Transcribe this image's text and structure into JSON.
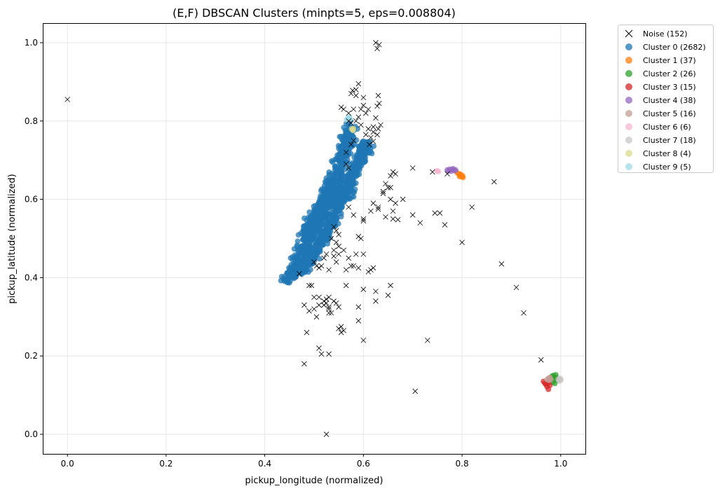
{
  "chart_data": {
    "type": "scatter",
    "title": "(E,F) DBSCAN Clusters (minpts=5, eps=0.008804)",
    "xlabel": "pickup_longitude (normalized)",
    "ylabel": "pickup_latitude (normalized)",
    "xlim": [
      -0.05,
      1.05
    ],
    "ylim": [
      -0.05,
      1.05
    ],
    "xticks": [
      0.0,
      0.2,
      0.4,
      0.6,
      0.8,
      1.0
    ],
    "yticks": [
      0.0,
      0.2,
      0.4,
      0.6,
      0.8,
      1.0
    ],
    "xtick_labels": [
      "0.0",
      "0.2",
      "0.4",
      "0.6",
      "0.8",
      "1.0"
    ],
    "ytick_labels": [
      "0.0",
      "0.2",
      "0.4",
      "0.6",
      "0.8",
      "1.0"
    ],
    "grid": true,
    "legend_position": "outside-top-right",
    "series": [
      {
        "name": "Noise (152)",
        "marker": "x",
        "color": "#000000",
        "points": [
          [
            0.0,
            0.855
          ],
          [
            0.625,
            1.0
          ],
          [
            0.628,
            0.985
          ],
          [
            0.632,
            0.995
          ],
          [
            0.59,
            0.895
          ],
          [
            0.585,
            0.88
          ],
          [
            0.578,
            0.878
          ],
          [
            0.575,
            0.87
          ],
          [
            0.585,
            0.865
          ],
          [
            0.63,
            0.865
          ],
          [
            0.632,
            0.845
          ],
          [
            0.628,
            0.838
          ],
          [
            0.6,
            0.84
          ],
          [
            0.58,
            0.83
          ],
          [
            0.57,
            0.82
          ],
          [
            0.555,
            0.835
          ],
          [
            0.56,
            0.83
          ],
          [
            0.605,
            0.82
          ],
          [
            0.59,
            0.81
          ],
          [
            0.625,
            0.808
          ],
          [
            0.595,
            0.79
          ],
          [
            0.635,
            0.79
          ],
          [
            0.63,
            0.78
          ],
          [
            0.62,
            0.772
          ],
          [
            0.628,
            0.765
          ],
          [
            0.615,
            0.758
          ],
          [
            0.62,
            0.748
          ],
          [
            0.612,
            0.74
          ],
          [
            0.66,
            0.67
          ],
          [
            0.665,
            0.665
          ],
          [
            0.655,
            0.66
          ],
          [
            0.65,
            0.63
          ],
          [
            0.64,
            0.615
          ],
          [
            0.655,
            0.6
          ],
          [
            0.665,
            0.59
          ],
          [
            0.66,
            0.57
          ],
          [
            0.63,
            0.58
          ],
          [
            0.62,
            0.59
          ],
          [
            0.615,
            0.57
          ],
          [
            0.7,
            0.68
          ],
          [
            0.74,
            0.67
          ],
          [
            0.77,
            0.665
          ],
          [
            0.68,
            0.6
          ],
          [
            0.645,
            0.555
          ],
          [
            0.66,
            0.55
          ],
          [
            0.67,
            0.548
          ],
          [
            0.7,
            0.56
          ],
          [
            0.715,
            0.54
          ],
          [
            0.745,
            0.565
          ],
          [
            0.755,
            0.565
          ],
          [
            0.765,
            0.535
          ],
          [
            0.8,
            0.49
          ],
          [
            0.82,
            0.58
          ],
          [
            0.865,
            0.645
          ],
          [
            0.88,
            0.435
          ],
          [
            0.91,
            0.375
          ],
          [
            0.925,
            0.31
          ],
          [
            0.96,
            0.19
          ],
          [
            0.705,
            0.11
          ],
          [
            0.73,
            0.24
          ],
          [
            0.6,
            0.545
          ],
          [
            0.595,
            0.5
          ],
          [
            0.59,
            0.505
          ],
          [
            0.585,
            0.46
          ],
          [
            0.6,
            0.46
          ],
          [
            0.57,
            0.45
          ],
          [
            0.58,
            0.43
          ],
          [
            0.59,
            0.425
          ],
          [
            0.565,
            0.42
          ],
          [
            0.575,
            0.43
          ],
          [
            0.61,
            0.415
          ],
          [
            0.615,
            0.42
          ],
          [
            0.62,
            0.425
          ],
          [
            0.565,
            0.38
          ],
          [
            0.6,
            0.37
          ],
          [
            0.625,
            0.365
          ],
          [
            0.655,
            0.38
          ],
          [
            0.65,
            0.355
          ],
          [
            0.625,
            0.34
          ],
          [
            0.59,
            0.325
          ],
          [
            0.59,
            0.29
          ],
          [
            0.6,
            0.24
          ],
          [
            0.55,
            0.46
          ],
          [
            0.545,
            0.44
          ],
          [
            0.53,
            0.42
          ],
          [
            0.515,
            0.43
          ],
          [
            0.51,
            0.425
          ],
          [
            0.505,
            0.43
          ],
          [
            0.49,
            0.38
          ],
          [
            0.495,
            0.38
          ],
          [
            0.5,
            0.35
          ],
          [
            0.51,
            0.33
          ],
          [
            0.52,
            0.34
          ],
          [
            0.525,
            0.345
          ],
          [
            0.525,
            0.335
          ],
          [
            0.53,
            0.325
          ],
          [
            0.53,
            0.32
          ],
          [
            0.53,
            0.31
          ],
          [
            0.535,
            0.31
          ],
          [
            0.545,
            0.335
          ],
          [
            0.55,
            0.325
          ],
          [
            0.55,
            0.27
          ],
          [
            0.555,
            0.275
          ],
          [
            0.56,
            0.265
          ],
          [
            0.555,
            0.26
          ],
          [
            0.49,
            0.315
          ],
          [
            0.5,
            0.32
          ],
          [
            0.505,
            0.3
          ],
          [
            0.485,
            0.26
          ],
          [
            0.51,
            0.22
          ],
          [
            0.515,
            0.205
          ],
          [
            0.53,
            0.205
          ],
          [
            0.48,
            0.18
          ],
          [
            0.525,
            0.0
          ],
          [
            0.57,
            0.68
          ],
          [
            0.565,
            0.69
          ],
          [
            0.565,
            0.72
          ],
          [
            0.575,
            0.74
          ],
          [
            0.58,
            0.75
          ],
          [
            0.575,
            0.795
          ],
          [
            0.585,
            0.8
          ],
          [
            0.57,
            0.8
          ],
          [
            0.605,
            0.765
          ],
          [
            0.61,
            0.78
          ],
          [
            0.62,
            0.785
          ],
          [
            0.54,
            0.53
          ],
          [
            0.535,
            0.5
          ],
          [
            0.545,
            0.49
          ],
          [
            0.54,
            0.47
          ],
          [
            0.525,
            0.46
          ],
          [
            0.52,
            0.45
          ],
          [
            0.5,
            0.44
          ],
          [
            0.47,
            0.41
          ],
          [
            0.545,
            0.52
          ],
          [
            0.55,
            0.51
          ],
          [
            0.64,
            0.62
          ],
          [
            0.63,
            0.575
          ],
          [
            0.645,
            0.64
          ],
          [
            0.655,
            0.63
          ],
          [
            0.53,
            0.35
          ],
          [
            0.54,
            0.34
          ],
          [
            0.52,
            0.33
          ],
          [
            0.51,
            0.35
          ],
          [
            0.48,
            0.33
          ],
          [
            0.6,
            0.55
          ],
          [
            0.58,
            0.56
          ],
          [
            0.57,
            0.58
          ],
          [
            0.55,
            0.48
          ],
          [
            0.56,
            0.47
          ],
          [
            0.54,
            0.455
          ],
          [
            0.6,
            0.86
          ],
          [
            0.61,
            0.83
          ],
          [
            0.595,
            0.83
          ]
        ]
      },
      {
        "name": "Cluster 0 (2682)",
        "marker": "o",
        "color": "#1f77b4"
      },
      {
        "name": "Cluster 1 (37)",
        "marker": "o",
        "color": "#ff7f0e",
        "points": [
          [
            0.79,
            0.668
          ],
          [
            0.793,
            0.665
          ],
          [
            0.796,
            0.662
          ],
          [
            0.798,
            0.66
          ],
          [
            0.8,
            0.658
          ],
          [
            0.802,
            0.656
          ],
          [
            0.797,
            0.664
          ],
          [
            0.801,
            0.66
          ],
          [
            0.795,
            0.658
          ]
        ]
      },
      {
        "name": "Cluster 2 (26)",
        "marker": "o",
        "color": "#2ca02c",
        "points": [
          [
            0.985,
            0.15
          ],
          [
            0.99,
            0.145
          ],
          [
            0.985,
            0.14
          ],
          [
            0.992,
            0.138
          ],
          [
            0.983,
            0.133
          ],
          [
            0.988,
            0.13
          ],
          [
            0.982,
            0.148
          ],
          [
            0.99,
            0.152
          ]
        ]
      },
      {
        "name": "Cluster 3 (15)",
        "marker": "o",
        "color": "#d62728",
        "points": [
          [
            0.965,
            0.135
          ],
          [
            0.97,
            0.128
          ],
          [
            0.972,
            0.122
          ],
          [
            0.975,
            0.115
          ],
          [
            0.968,
            0.13
          ],
          [
            0.978,
            0.125
          ],
          [
            0.975,
            0.132
          ]
        ]
      },
      {
        "name": "Cluster 4 (38)",
        "marker": "o",
        "color": "#9467bd",
        "points": [
          [
            0.77,
            0.675
          ],
          [
            0.775,
            0.677
          ],
          [
            0.78,
            0.676
          ],
          [
            0.785,
            0.673
          ],
          [
            0.778,
            0.672
          ],
          [
            0.772,
            0.672
          ],
          [
            0.782,
            0.678
          ],
          [
            0.787,
            0.675
          ]
        ]
      },
      {
        "name": "Cluster 5 (16)",
        "marker": "o",
        "color": "#c49c94",
        "points": [
          [
            0.975,
            0.143
          ],
          [
            0.978,
            0.145
          ],
          [
            0.972,
            0.14
          ],
          [
            0.98,
            0.14
          ],
          [
            0.976,
            0.138
          ]
        ]
      },
      {
        "name": "Cluster 6 (6)",
        "marker": "o",
        "color": "#f7b6d2",
        "points": [
          [
            0.75,
            0.672
          ],
          [
            0.752,
            0.671
          ],
          [
            0.749,
            0.673
          ]
        ]
      },
      {
        "name": "Cluster 7 (18)",
        "marker": "o",
        "color": "#c7c7c7",
        "points": [
          [
            0.995,
            0.14
          ],
          [
            1.0,
            0.138
          ],
          [
            0.998,
            0.143
          ],
          [
            0.997,
            0.136
          ],
          [
            1.0,
            0.141
          ]
        ]
      },
      {
        "name": "Cluster 8 (4)",
        "marker": "o",
        "color": "#dbdb8d",
        "points": [
          [
            0.578,
            0.778
          ],
          [
            0.58,
            0.781
          ],
          [
            0.576,
            0.78
          ],
          [
            0.579,
            0.776
          ]
        ]
      },
      {
        "name": "Cluster 9 (5)",
        "marker": "o",
        "color": "#9edae5",
        "points": [
          [
            0.57,
            0.805
          ],
          [
            0.572,
            0.81
          ],
          [
            0.568,
            0.807
          ],
          [
            0.566,
            0.803
          ],
          [
            0.573,
            0.806
          ]
        ]
      }
    ]
  }
}
